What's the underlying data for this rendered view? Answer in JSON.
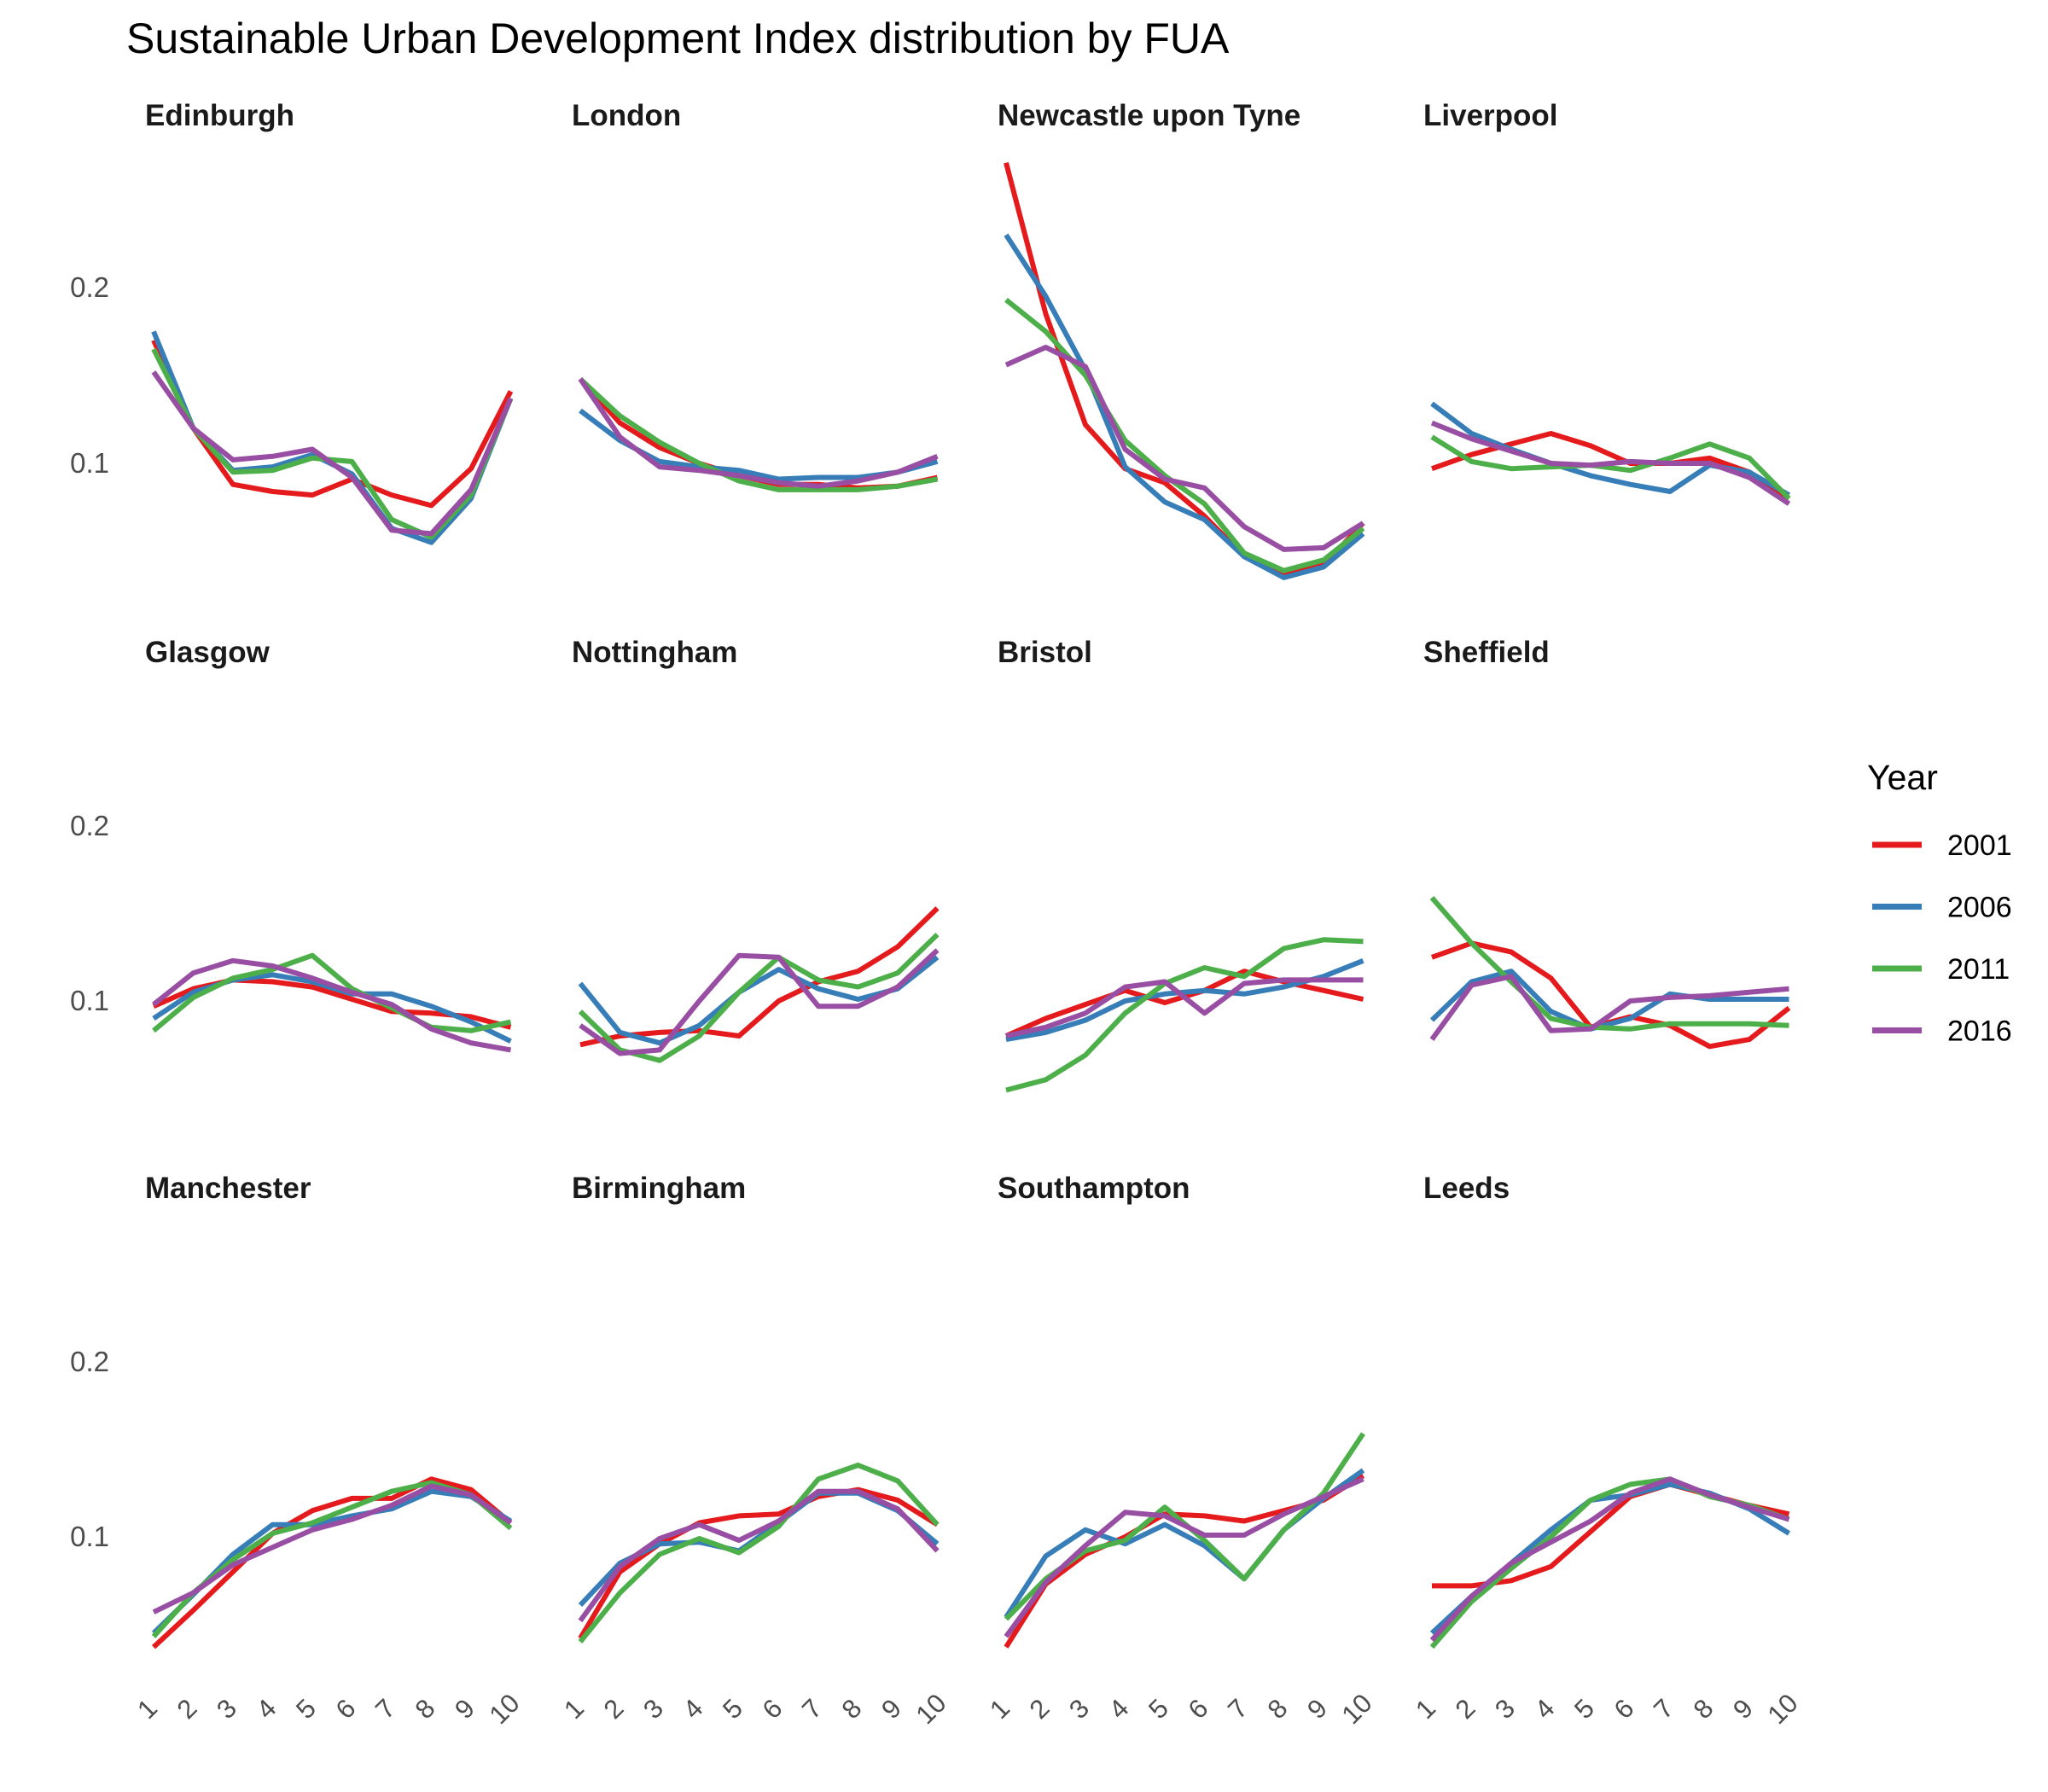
{
  "chart_data": {
    "type": "line",
    "title": "Sustainable Urban Development Index distribution by FUA",
    "xlabel": "",
    "ylabel": "",
    "x": [
      1,
      2,
      3,
      4,
      5,
      6,
      7,
      8,
      9,
      10
    ],
    "x_tick_labels": [
      "1",
      "2",
      "3",
      "4",
      "5",
      "6",
      "7",
      "8",
      "9",
      "10"
    ],
    "ylim": [
      0.03,
      0.27
    ],
    "y_ticks": [
      0.1,
      0.2
    ],
    "y_tick_labels": [
      "0.1",
      "0.2"
    ],
    "grid": false,
    "legend": {
      "title": "Year",
      "position": "right"
    },
    "series_meta": [
      {
        "name": "2001",
        "color": "#E41A1C"
      },
      {
        "name": "2006",
        "color": "#377EB8"
      },
      {
        "name": "2011",
        "color": "#4DAF4A"
      },
      {
        "name": "2016",
        "color": "#984EA3"
      }
    ],
    "facets": [
      {
        "name": "Edinburgh",
        "series": [
          {
            "name": "2001",
            "values": [
              0.17,
              0.12,
              0.088,
              0.084,
              0.082,
              0.091,
              0.082,
              0.076,
              0.097,
              0.141
            ]
          },
          {
            "name": "2006",
            "values": [
              0.175,
              0.12,
              0.096,
              0.098,
              0.105,
              0.094,
              0.063,
              0.055,
              0.08,
              0.137
            ]
          },
          {
            "name": "2011",
            "values": [
              0.165,
              0.12,
              0.095,
              0.096,
              0.103,
              0.101,
              0.068,
              0.058,
              0.082,
              0.137
            ]
          },
          {
            "name": "2016",
            "values": [
              0.152,
              0.12,
              0.102,
              0.104,
              0.108,
              0.092,
              0.062,
              0.06,
              0.085,
              0.137
            ]
          }
        ]
      },
      {
        "name": "London",
        "series": [
          {
            "name": "2001",
            "values": [
              0.148,
              0.123,
              0.109,
              0.1,
              0.093,
              0.088,
              0.088,
              0.086,
              0.087,
              0.092
            ]
          },
          {
            "name": "2006",
            "values": [
              0.13,
              0.113,
              0.101,
              0.098,
              0.096,
              0.091,
              0.092,
              0.092,
              0.095,
              0.101
            ]
          },
          {
            "name": "2011",
            "values": [
              0.148,
              0.127,
              0.112,
              0.1,
              0.09,
              0.085,
              0.085,
              0.085,
              0.087,
              0.091
            ]
          },
          {
            "name": "2016",
            "values": [
              0.148,
              0.115,
              0.098,
              0.096,
              0.093,
              0.089,
              0.087,
              0.09,
              0.095,
              0.104
            ]
          }
        ]
      },
      {
        "name": "Newcastle upon Tyne",
        "series": [
          {
            "name": "2001",
            "values": [
              0.271,
              0.185,
              0.122,
              0.097,
              0.089,
              0.07,
              0.047,
              0.037,
              0.042,
              0.066
            ]
          },
          {
            "name": "2006",
            "values": [
              0.23,
              0.195,
              0.153,
              0.098,
              0.078,
              0.068,
              0.047,
              0.035,
              0.041,
              0.06
            ]
          },
          {
            "name": "2011",
            "values": [
              0.193,
              0.175,
              0.15,
              0.113,
              0.093,
              0.077,
              0.049,
              0.039,
              0.045,
              0.063
            ]
          },
          {
            "name": "2016",
            "values": [
              0.156,
              0.166,
              0.155,
              0.108,
              0.091,
              0.086,
              0.064,
              0.051,
              0.052,
              0.066
            ]
          }
        ]
      },
      {
        "name": "Liverpool",
        "series": [
          {
            "name": "2001",
            "values": [
              0.097,
              0.105,
              0.111,
              0.117,
              0.11,
              0.1,
              0.1,
              0.103,
              0.095,
              0.08
            ]
          },
          {
            "name": "2006",
            "values": [
              0.134,
              0.117,
              0.108,
              0.1,
              0.093,
              0.088,
              0.084,
              0.099,
              0.095,
              0.082
            ]
          },
          {
            "name": "2011",
            "values": [
              0.115,
              0.101,
              0.097,
              0.098,
              0.099,
              0.096,
              0.103,
              0.111,
              0.103,
              0.08
            ]
          },
          {
            "name": "2016",
            "values": [
              0.123,
              0.114,
              0.107,
              0.1,
              0.099,
              0.101,
              0.1,
              0.1,
              0.092,
              0.077
            ]
          }
        ]
      },
      {
        "name": "Glasgow",
        "series": [
          {
            "name": "2001",
            "values": [
              0.097,
              0.107,
              0.112,
              0.111,
              0.108,
              0.101,
              0.094,
              0.093,
              0.091,
              0.085
            ]
          },
          {
            "name": "2006",
            "values": [
              0.09,
              0.105,
              0.112,
              0.115,
              0.111,
              0.104,
              0.104,
              0.097,
              0.088,
              0.077
            ]
          },
          {
            "name": "2011",
            "values": [
              0.083,
              0.102,
              0.113,
              0.118,
              0.126,
              0.107,
              0.096,
              0.085,
              0.083,
              0.088
            ]
          },
          {
            "name": "2016",
            "values": [
              0.098,
              0.116,
              0.123,
              0.12,
              0.113,
              0.105,
              0.098,
              0.084,
              0.076,
              0.072
            ]
          }
        ]
      },
      {
        "name": "Nottingham",
        "series": [
          {
            "name": "2001",
            "values": [
              0.075,
              0.08,
              0.082,
              0.083,
              0.08,
              0.1,
              0.111,
              0.117,
              0.131,
              0.153
            ]
          },
          {
            "name": "2006",
            "values": [
              0.11,
              0.082,
              0.076,
              0.086,
              0.105,
              0.118,
              0.107,
              0.101,
              0.107,
              0.125
            ]
          },
          {
            "name": "2011",
            "values": [
              0.094,
              0.072,
              0.066,
              0.08,
              0.105,
              0.125,
              0.112,
              0.108,
              0.116,
              0.138
            ]
          },
          {
            "name": "2016",
            "values": [
              0.086,
              0.07,
              0.072,
              0.1,
              0.126,
              0.125,
              0.097,
              0.097,
              0.108,
              0.129
            ]
          }
        ]
      },
      {
        "name": "Bristol",
        "series": [
          {
            "name": "2001",
            "values": [
              0.08,
              0.09,
              0.098,
              0.106,
              0.099,
              0.106,
              0.117,
              0.111,
              0.106,
              0.101
            ]
          },
          {
            "name": "2006",
            "values": [
              0.078,
              0.082,
              0.089,
              0.1,
              0.104,
              0.106,
              0.104,
              0.108,
              0.114,
              0.123
            ]
          },
          {
            "name": "2011",
            "values": [
              0.049,
              0.055,
              0.069,
              0.093,
              0.11,
              0.119,
              0.114,
              0.13,
              0.135,
              0.134
            ]
          },
          {
            "name": "2016",
            "values": [
              0.08,
              0.085,
              0.093,
              0.108,
              0.111,
              0.093,
              0.11,
              0.112,
              0.112,
              0.112
            ]
          }
        ]
      },
      {
        "name": "Sheffield",
        "series": [
          {
            "name": "2001",
            "values": [
              0.125,
              0.133,
              0.128,
              0.113,
              0.085,
              0.091,
              0.086,
              0.074,
              0.078,
              0.096
            ]
          },
          {
            "name": "2006",
            "values": [
              0.089,
              0.111,
              0.117,
              0.094,
              0.084,
              0.09,
              0.104,
              0.101,
              0.101,
              0.101
            ]
          },
          {
            "name": "2011",
            "values": [
              0.159,
              0.133,
              0.111,
              0.09,
              0.085,
              0.084,
              0.087,
              0.087,
              0.087,
              0.086
            ]
          },
          {
            "name": "2016",
            "values": [
              0.078,
              0.109,
              0.114,
              0.083,
              0.084,
              0.1,
              0.102,
              0.103,
              0.105,
              0.107
            ]
          }
        ]
      },
      {
        "name": "Manchester",
        "series": [
          {
            "name": "2001",
            "values": [
              0.037,
              0.058,
              0.08,
              0.102,
              0.115,
              0.122,
              0.122,
              0.133,
              0.127,
              0.108
            ]
          },
          {
            "name": "2006",
            "values": [
              0.045,
              0.067,
              0.09,
              0.107,
              0.107,
              0.112,
              0.116,
              0.126,
              0.123,
              0.109
            ]
          },
          {
            "name": "2011",
            "values": [
              0.043,
              0.068,
              0.087,
              0.102,
              0.108,
              0.117,
              0.126,
              0.131,
              0.124,
              0.105
            ]
          },
          {
            "name": "2016",
            "values": [
              0.057,
              0.068,
              0.084,
              0.094,
              0.104,
              0.11,
              0.118,
              0.129,
              0.124,
              0.108
            ]
          }
        ]
      },
      {
        "name": "Birmingham",
        "series": [
          {
            "name": "2001",
            "values": [
              0.042,
              0.08,
              0.096,
              0.108,
              0.112,
              0.113,
              0.123,
              0.127,
              0.121,
              0.107
            ]
          },
          {
            "name": "2006",
            "values": [
              0.061,
              0.085,
              0.096,
              0.097,
              0.092,
              0.108,
              0.125,
              0.125,
              0.115,
              0.096
            ]
          },
          {
            "name": "2011",
            "values": [
              0.04,
              0.068,
              0.09,
              0.099,
              0.091,
              0.106,
              0.133,
              0.141,
              0.132,
              0.107
            ]
          },
          {
            "name": "2016",
            "values": [
              0.052,
              0.083,
              0.099,
              0.107,
              0.098,
              0.109,
              0.126,
              0.126,
              0.116,
              0.092
            ]
          }
        ]
      },
      {
        "name": "Southampton",
        "series": [
          {
            "name": "2001",
            "values": [
              0.037,
              0.073,
              0.09,
              0.1,
              0.113,
              0.112,
              0.109,
              0.115,
              0.121,
              0.135
            ]
          },
          {
            "name": "2006",
            "values": [
              0.054,
              0.089,
              0.104,
              0.096,
              0.107,
              0.095,
              0.076,
              0.104,
              0.122,
              0.138
            ]
          },
          {
            "name": "2011",
            "values": [
              0.053,
              0.076,
              0.092,
              0.098,
              0.117,
              0.098,
              0.076,
              0.104,
              0.125,
              0.159
            ]
          },
          {
            "name": "2016",
            "values": [
              0.043,
              0.074,
              0.095,
              0.114,
              0.112,
              0.101,
              0.101,
              0.113,
              0.123,
              0.133
            ]
          }
        ]
      },
      {
        "name": "Leeds",
        "series": [
          {
            "name": "2001",
            "values": [
              0.072,
              0.072,
              0.075,
              0.083,
              0.103,
              0.123,
              0.13,
              0.124,
              0.118,
              0.113
            ]
          },
          {
            "name": "2006",
            "values": [
              0.045,
              0.066,
              0.085,
              0.104,
              0.121,
              0.124,
              0.13,
              0.125,
              0.116,
              0.102
            ]
          },
          {
            "name": "2011",
            "values": [
              0.037,
              0.063,
              0.082,
              0.1,
              0.121,
              0.13,
              0.133,
              0.123,
              0.118,
              0.11
            ]
          },
          {
            "name": "2016",
            "values": [
              0.041,
              0.066,
              0.085,
              0.097,
              0.109,
              0.125,
              0.133,
              0.124,
              0.117,
              0.11
            ]
          }
        ]
      }
    ]
  }
}
